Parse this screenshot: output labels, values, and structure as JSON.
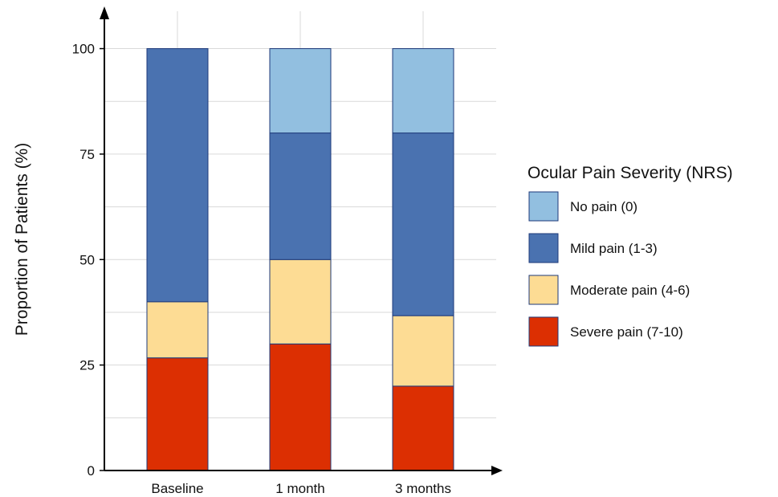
{
  "chart_data": {
    "type": "bar",
    "stacked": true,
    "categories": [
      "Baseline",
      "1 month",
      "3 months"
    ],
    "series": [
      {
        "name": "Severe pain (7-10)",
        "color": "#dc2f02",
        "values": [
          26.7,
          30.0,
          20.0
        ]
      },
      {
        "name": "Moderate pain (4-6)",
        "color": "#fddc94",
        "values": [
          13.3,
          20.0,
          16.7
        ]
      },
      {
        "name": "Mild pain (1-3)",
        "color": "#4a72b0",
        "values": [
          60.0,
          30.0,
          43.3
        ]
      },
      {
        "name": "No pain (0)",
        "color": "#92bfe0",
        "values": [
          0.0,
          20.0,
          20.0
        ]
      }
    ],
    "ylabel": "Proportion of Patients (%)",
    "xlabel": "",
    "ylim": [
      0,
      110
    ],
    "yticks": [
      0,
      25,
      50,
      75,
      100
    ],
    "grid": true,
    "legend": {
      "title": "Ocular Pain Severity (NRS)",
      "position": "right",
      "order": [
        "No pain (0)",
        "Mild pain (1-3)",
        "Moderate pain (4-6)",
        "Severe pain (7-10)"
      ]
    }
  }
}
